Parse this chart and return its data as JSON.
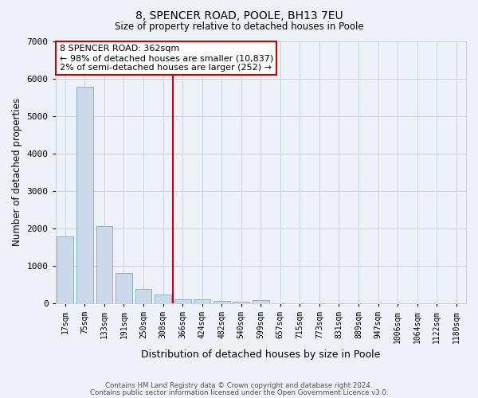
{
  "title": "8, SPENCER ROAD, POOLE, BH13 7EU",
  "subtitle": "Size of property relative to detached houses in Poole",
  "xlabel": "Distribution of detached houses by size in Poole",
  "ylabel": "Number of detached properties",
  "bar_values": [
    1780,
    5780,
    2060,
    810,
    380,
    230,
    110,
    110,
    70,
    40,
    80,
    0,
    0,
    0,
    0,
    0,
    0,
    0,
    0,
    0,
    0
  ],
  "x_labels": [
    "17sqm",
    "75sqm",
    "133sqm",
    "191sqm",
    "250sqm",
    "308sqm",
    "366sqm",
    "424sqm",
    "482sqm",
    "540sqm",
    "599sqm",
    "657sqm",
    "715sqm",
    "773sqm",
    "831sqm",
    "889sqm",
    "947sqm",
    "1006sqm",
    "1064sqm",
    "1122sqm",
    "1180sqm"
  ],
  "bar_color": "#ccd9e8",
  "bar_edge_color": "#7aaac8",
  "vline_index": 6,
  "vline_color": "#cc0000",
  "annotation_title": "8 SPENCER ROAD: 362sqm",
  "annotation_line1": "← 98% of detached houses are smaller (10,837)",
  "annotation_line2": "2% of semi-detached houses are larger (252) →",
  "annotation_box_color": "#ffffff",
  "annotation_box_edge": "#cc0000",
  "ylim": [
    0,
    7000
  ],
  "yticks": [
    0,
    1000,
    2000,
    3000,
    4000,
    5000,
    6000,
    7000
  ],
  "grid_color": "#c8d4e0",
  "bg_color": "#eef2f8",
  "footer1": "Contains HM Land Registry data © Crown copyright and database right 2024.",
  "footer2": "Contains public sector information licensed under the Open Government Licence v3.0."
}
